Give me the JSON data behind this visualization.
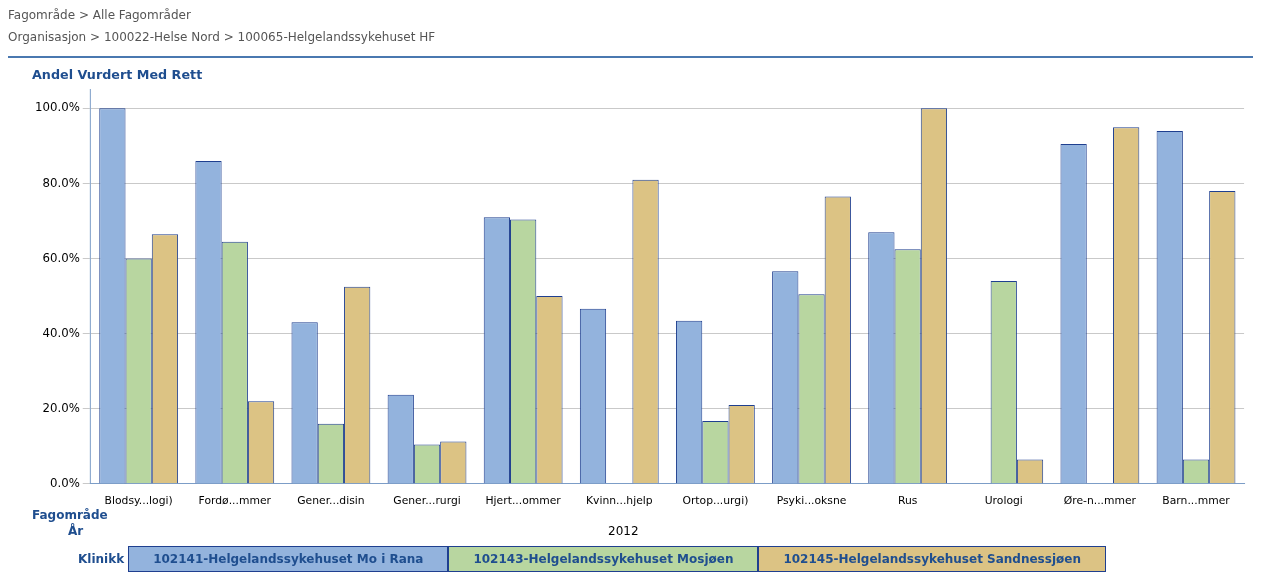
{
  "chart_data": {
    "type": "bar",
    "title": "Andel Vurdert Med Rett",
    "xlabel": "Fagområde",
    "legend_title": "Klinikk",
    "annotations": [
      "Fagområde > Alle Fagområder",
      "Organisasjon > 100022-Helse Nord > 100065-Helgelandssykehuset HF",
      "År",
      "2012"
    ],
    "categories": [
      "Blodsy...logi)",
      "Fordø...mmer",
      "Gener...disin",
      "Gener...rurgi",
      "Hjert...ommer",
      "Kvinn...hjelp",
      "Ortop...urgi)",
      "Psyki...oksne",
      "Rus",
      "Urologi",
      "Øre-n...mmer",
      "Barn...mmer"
    ],
    "series": [
      {
        "name": "102141-Helgelandssykehuset Mo i Rana",
        "color": "#93b3dd",
        "values": [
          100,
          86,
          43,
          23.7,
          71,
          46.6,
          43.4,
          56.6,
          67,
          null,
          90.5,
          94
        ]
      },
      {
        "name": "102143-Helgelandssykehuset Mosjøen",
        "color": "#b8d6a0",
        "values": [
          60,
          64.5,
          16,
          10.5,
          70.4,
          null,
          16.7,
          50.5,
          62.5,
          54,
          null,
          6.5
        ]
      },
      {
        "name": "102145-Helgelandssykehuset Sandnessjøen",
        "color": "#dcc384",
        "values": [
          66.5,
          22,
          52.5,
          11.3,
          50,
          81,
          21,
          76.5,
          100,
          6.5,
          95,
          78
        ]
      }
    ],
    "ylim": [
      0,
      105
    ],
    "yticks": [
      {
        "value": 0,
        "label": "0.0%"
      },
      {
        "value": 20,
        "label": "20.0%"
      },
      {
        "value": 40,
        "label": "40.0%"
      },
      {
        "value": 60,
        "label": "60.0%"
      },
      {
        "value": 80,
        "label": "80.0%"
      },
      {
        "value": 100,
        "label": "100.0%"
      }
    ],
    "grid": "y",
    "legend": "bottom"
  }
}
